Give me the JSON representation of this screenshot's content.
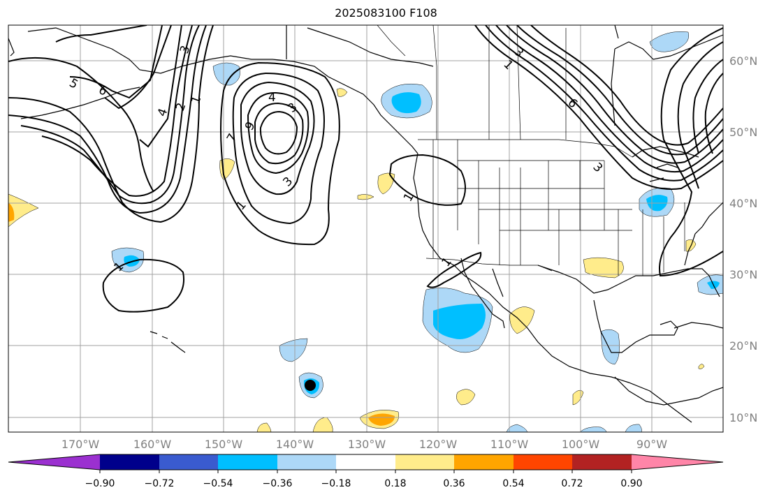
{
  "title": "2025083100 F108",
  "lat_labels": [
    "60°N",
    "50°N",
    "40°N",
    "30°N",
    "20°N",
    "10°N"
  ],
  "lon_labels": [
    "170°W",
    "160°W",
    "150°W",
    "140°W",
    "130°W",
    "120°W",
    "110°W",
    "100°W",
    "90°W"
  ],
  "colorbar": {
    "ticks": [
      "−0.90",
      "−0.72",
      "−0.54",
      "−0.36",
      "−0.18",
      "0.18",
      "0.36",
      "0.54",
      "0.72",
      "0.90"
    ],
    "colors": [
      "#9b30d0",
      "#00008b",
      "#3a5bcf",
      "#00bfff",
      "#add8f7",
      "#ffffff",
      "#ffec8b",
      "#ffa500",
      "#ff4500",
      "#b22222",
      "#ff85a8"
    ]
  },
  "contour_labels": [
    "5",
    "6",
    "3",
    "4",
    "2",
    "1",
    "4",
    "3",
    "9",
    "7",
    "3",
    "1",
    "1",
    "1",
    "1",
    "1",
    "6",
    "3",
    "3"
  ],
  "fill_colors": {
    "light_blue": "#add8f7",
    "blue": "#00bfff",
    "yellow": "#ffec8b",
    "orange": "#ffa500",
    "black": "#000000"
  },
  "gridline_color": "#a0a0a0"
}
